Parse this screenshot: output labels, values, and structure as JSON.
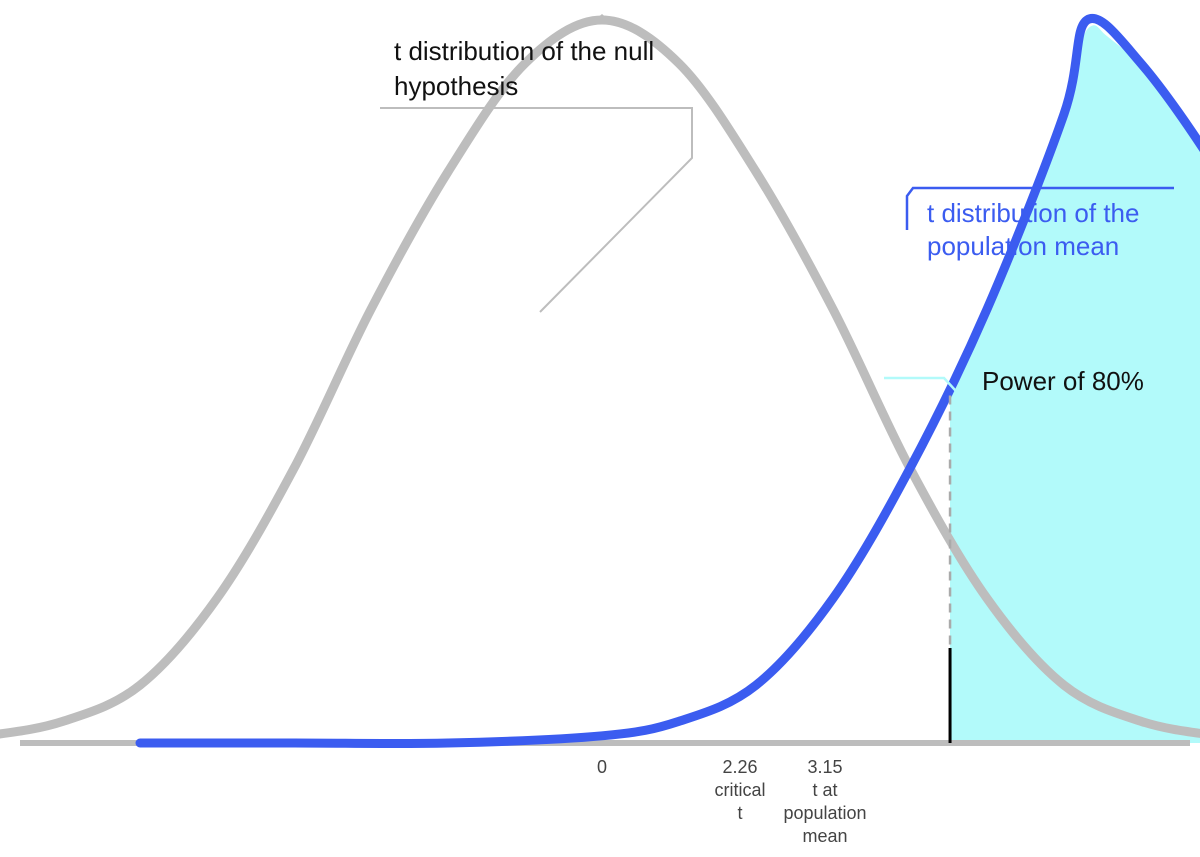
{
  "chart_data": {
    "type": "line",
    "title": "",
    "xlabel": "",
    "ylabel": "",
    "xlim": [
      -5.0,
      8.0
    ],
    "grid": false,
    "legend": "none",
    "series": [
      {
        "label": "t distribution of the null hypothesis",
        "center": 0,
        "color": "#bdbdbd",
        "x": [
          -5.0,
          -4.5,
          -4.0,
          -3.5,
          -3.0,
          -2.5,
          -2.0,
          -1.5,
          -1.0,
          -0.5,
          0.0,
          0.5,
          1.0,
          1.5,
          2.0,
          2.5,
          3.0,
          3.5,
          4.0,
          4.5,
          5.0,
          5.5,
          6.0,
          6.5,
          7.0
        ],
        "y": [
          0.0,
          0.0,
          0.01,
          0.03,
          0.08,
          0.2,
          0.38,
          0.6,
          0.79,
          0.94,
          1.0,
          0.94,
          0.79,
          0.6,
          0.38,
          0.2,
          0.08,
          0.03,
          0.01,
          0.0,
          0.0,
          0.0,
          0.0,
          0.0,
          0.0
        ]
      },
      {
        "label": "t distribution of the population mean",
        "center": 3.15,
        "color": "#3b5cf0",
        "x": [
          -3.0,
          -2.0,
          -1.0,
          0.0,
          0.5,
          1.0,
          1.5,
          2.0,
          2.5,
          3.0,
          3.15,
          3.5,
          4.0,
          4.5,
          5.0,
          5.5,
          6.0,
          6.5,
          7.0,
          8.0
        ],
        "y": [
          0.0,
          0.0,
          0.0,
          0.01,
          0.03,
          0.08,
          0.2,
          0.38,
          0.6,
          0.87,
          1.0,
          0.94,
          0.79,
          0.6,
          0.38,
          0.2,
          0.08,
          0.03,
          0.01,
          0.0
        ]
      }
    ],
    "shaded_region": {
      "label": "Power of 80%",
      "from": 2.26,
      "to": 8.0,
      "under_series": "t distribution of the population mean",
      "color": "#b2fafa"
    },
    "vertical_markers": [
      {
        "x": 2.26,
        "style": "solid-dashed",
        "color": "#000000"
      }
    ],
    "ticks": [
      {
        "x": 0,
        "value": "0",
        "caption": ""
      },
      {
        "x": 2.26,
        "value": "2.26",
        "caption": "critical t"
      },
      {
        "x": 3.15,
        "value": "3.15",
        "caption": "t at population mean"
      }
    ],
    "annotations": [
      {
        "id": "null",
        "text_lines": [
          "t distribution of the null",
          "hypothesis"
        ],
        "color": "#111111",
        "leader_color": "#bdbdbd"
      },
      {
        "id": "pop",
        "text_lines": [
          "t distribution of the",
          "population mean"
        ],
        "color": "#3b5cf0",
        "leader_color": "#3b5cf0"
      },
      {
        "id": "power",
        "text_lines": [
          "Power of 80%"
        ],
        "color": "#111111",
        "leader_color": "#b2fafa"
      }
    ]
  },
  "labels": {
    "null_line1": "t distribution of the null",
    "null_line2": "hypothesis",
    "pop_line1": "t distribution of the",
    "pop_line2": "population mean",
    "power": "Power of 80%",
    "tick_0": "0",
    "tick_crit_value": "2.26",
    "tick_crit_caption1": "critical",
    "tick_crit_caption2": "t",
    "tick_pop_value": "3.15",
    "tick_pop_caption1": "t at",
    "tick_pop_caption2": "population",
    "tick_pop_caption3": "mean"
  },
  "colors": {
    "axis": "#bdbdbd",
    "null_curve": "#bdbdbd",
    "population_curve": "#3b5cf0",
    "power_fill": "#b2fafa",
    "critical_line": "#000000",
    "critical_dash": "#aaaaaa"
  }
}
